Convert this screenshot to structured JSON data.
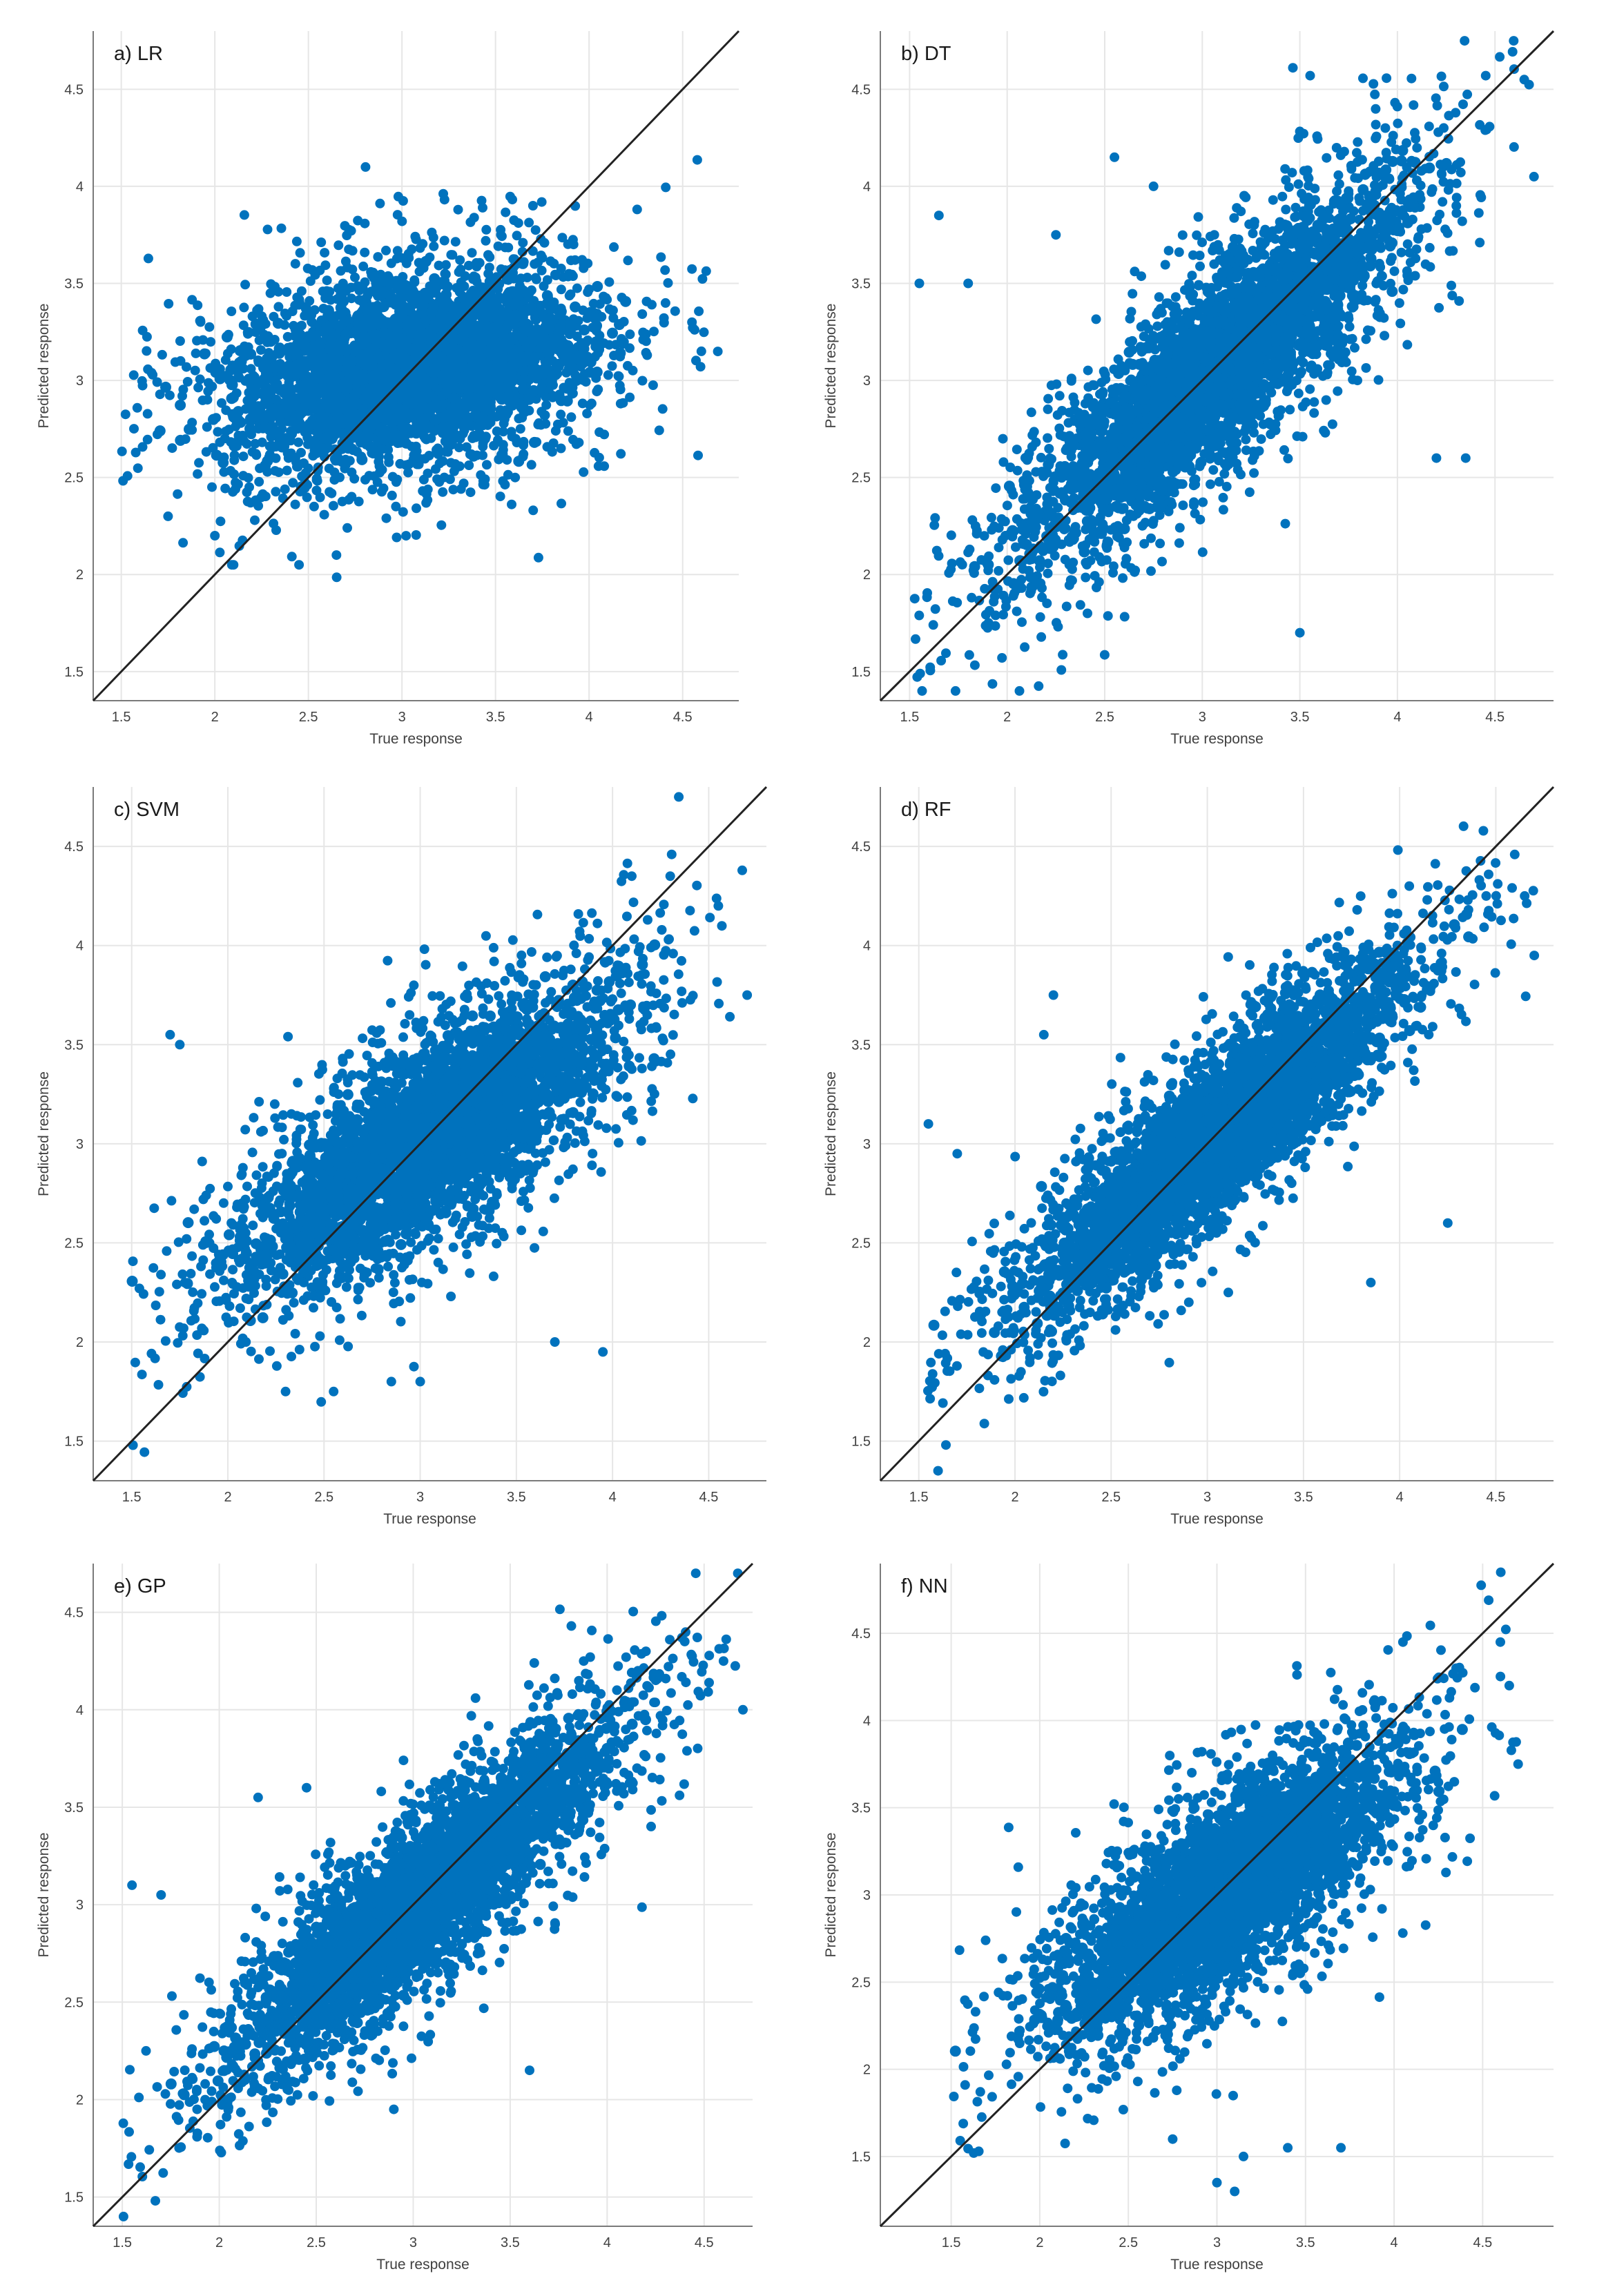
{
  "colors": {
    "points": "#0072bd",
    "reference_line": "#222222",
    "grid": "#e6e6e6",
    "axis": "#7a7a7a"
  },
  "chart_data": [
    {
      "type": "scatter",
      "title": "a) LR",
      "xlabel": "True response",
      "ylabel": "Predicted response",
      "xlim": [
        1.35,
        4.8
      ],
      "ylim": [
        1.35,
        4.8
      ],
      "xticks": [
        "1.5",
        "2",
        "2.5",
        "3",
        "3.5",
        "4",
        "4.5"
      ],
      "yticks": [
        "1.5",
        "2",
        "2.5",
        "3",
        "3.5",
        "4",
        "4.5"
      ],
      "grid": true,
      "reference_line": "y = x",
      "cloud": {
        "x_range": [
          1.5,
          4.7
        ],
        "y_center": 3.05,
        "slope": 0.15,
        "y_spread": 0.3
      },
      "points": [
        [
          2.1,
          2.05
        ],
        [
          2.45,
          2.05
        ],
        [
          2.65,
          2.1
        ],
        [
          1.75,
          2.3
        ],
        [
          3.7,
          3.9
        ],
        [
          3.3,
          3.88
        ],
        [
          4.6,
          3.15
        ],
        [
          4.55,
          3.3
        ],
        [
          3.85,
          2.65
        ],
        [
          2.0,
          2.2
        ]
      ]
    },
    {
      "type": "scatter",
      "title": "b) DT",
      "xlabel": "True response",
      "ylabel": "Predicted response",
      "xlim": [
        1.35,
        4.8
      ],
      "ylim": [
        1.35,
        4.8
      ],
      "xticks": [
        "1.5",
        "2",
        "2.5",
        "3",
        "3.5",
        "4",
        "4.5"
      ],
      "yticks": [
        "1.5",
        "2",
        "2.5",
        "3",
        "3.5",
        "4",
        "4.5"
      ],
      "grid": true,
      "reference_line": "y = x",
      "cloud": {
        "x_range": [
          1.5,
          4.7
        ],
        "y_center": 3.0,
        "slope": 0.85,
        "y_spread": 0.3
      },
      "points": [
        [
          1.55,
          3.5
        ],
        [
          1.65,
          3.85
        ],
        [
          1.8,
          3.5
        ],
        [
          2.25,
          3.75
        ],
        [
          2.55,
          4.15
        ],
        [
          2.75,
          4.0
        ],
        [
          3.5,
          1.7
        ],
        [
          4.35,
          2.6
        ],
        [
          4.2,
          2.6
        ],
        [
          4.65,
          4.55
        ],
        [
          4.7,
          4.05
        ]
      ]
    },
    {
      "type": "scatter",
      "title": "c) SVM",
      "xlabel": "True response",
      "ylabel": "Predicted response",
      "xlim": [
        1.3,
        4.8
      ],
      "ylim": [
        1.3,
        4.8
      ],
      "xticks": [
        "1.5",
        "2",
        "2.5",
        "3",
        "3.5",
        "4",
        "4.5"
      ],
      "yticks": [
        "1.5",
        "2",
        "2.5",
        "3",
        "3.5",
        "4",
        "4.5"
      ],
      "grid": true,
      "reference_line": "y = x",
      "cloud": {
        "x_range": [
          1.5,
          4.7
        ],
        "y_center": 3.0,
        "slope": 0.6,
        "y_spread": 0.3
      },
      "points": [
        [
          1.7,
          3.55
        ],
        [
          1.75,
          3.5
        ],
        [
          2.3,
          1.75
        ],
        [
          2.55,
          1.75
        ],
        [
          2.85,
          1.8
        ],
        [
          3.0,
          1.8
        ],
        [
          3.95,
          1.95
        ],
        [
          3.7,
          2.0
        ],
        [
          4.1,
          4.35
        ],
        [
          4.3,
          4.35
        ],
        [
          4.55,
          4.2
        ],
        [
          4.7,
          3.75
        ]
      ]
    },
    {
      "type": "scatter",
      "title": "d) RF",
      "xlabel": "True response",
      "ylabel": "Predicted response",
      "xlim": [
        1.3,
        4.8
      ],
      "ylim": [
        1.3,
        4.8
      ],
      "xticks": [
        "1.5",
        "2",
        "2.5",
        "3",
        "3.5",
        "4",
        "4.5"
      ],
      "yticks": [
        "1.5",
        "2",
        "2.5",
        "3",
        "3.5",
        "4",
        "4.5"
      ],
      "grid": true,
      "reference_line": "y = x",
      "cloud": {
        "x_range": [
          1.5,
          4.7
        ],
        "y_center": 3.0,
        "slope": 0.8,
        "y_spread": 0.25
      },
      "points": [
        [
          1.55,
          3.1
        ],
        [
          1.7,
          2.95
        ],
        [
          2.15,
          3.55
        ],
        [
          2.2,
          3.75
        ],
        [
          3.85,
          2.3
        ],
        [
          4.25,
          2.6
        ],
        [
          4.05,
          4.3
        ],
        [
          4.45,
          4.25
        ],
        [
          4.65,
          4.25
        ],
        [
          4.7,
          3.95
        ]
      ]
    },
    {
      "type": "scatter",
      "title": "e) GP",
      "xlabel": "True response",
      "ylabel": "Predicted response",
      "xlim": [
        1.35,
        4.75
      ],
      "ylim": [
        1.35,
        4.75
      ],
      "xticks": [
        "1.5",
        "2",
        "2.5",
        "3",
        "3.5",
        "4",
        "4.5"
      ],
      "yticks": [
        "1.5",
        "2",
        "2.5",
        "3",
        "3.5",
        "4",
        "4.5"
      ],
      "grid": true,
      "reference_line": "y = x",
      "cloud": {
        "x_range": [
          1.5,
          4.7
        ],
        "y_center": 3.0,
        "slope": 0.8,
        "y_spread": 0.25
      },
      "points": [
        [
          1.55,
          3.1
        ],
        [
          1.7,
          3.05
        ],
        [
          2.2,
          3.55
        ],
        [
          2.45,
          3.6
        ],
        [
          2.9,
          1.95
        ],
        [
          3.6,
          2.15
        ],
        [
          4.2,
          4.3
        ],
        [
          4.4,
          4.35
        ],
        [
          4.6,
          4.25
        ],
        [
          4.7,
          4.0
        ]
      ]
    },
    {
      "type": "scatter",
      "title": "f) NN",
      "xlabel": "True response",
      "ylabel": "Predicted response",
      "xlim": [
        1.1,
        4.9
      ],
      "ylim": [
        1.1,
        4.9
      ],
      "xticks": [
        "1.5",
        "2",
        "2.5",
        "3",
        "3.5",
        "4",
        "4.5"
      ],
      "yticks": [
        "1.5",
        "2",
        "2.5",
        "3",
        "3.5",
        "4",
        "4.5"
      ],
      "grid": true,
      "reference_line": "y = x",
      "cloud": {
        "x_range": [
          1.5,
          4.7
        ],
        "y_center": 3.0,
        "slope": 0.65,
        "y_spread": 0.32
      },
      "points": [
        [
          3.0,
          1.35
        ],
        [
          3.1,
          1.3
        ],
        [
          3.15,
          1.5
        ],
        [
          3.4,
          1.55
        ],
        [
          2.75,
          1.6
        ],
        [
          3.7,
          1.55
        ],
        [
          4.05,
          4.45
        ],
        [
          4.35,
          4.3
        ],
        [
          4.6,
          4.45
        ],
        [
          4.65,
          4.2
        ],
        [
          4.7,
          3.75
        ]
      ]
    }
  ]
}
